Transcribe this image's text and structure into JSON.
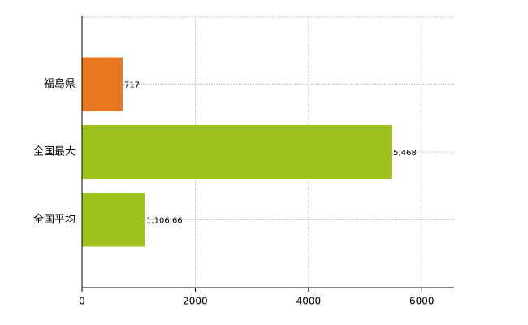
{
  "chart_data": {
    "type": "barh",
    "categories": [
      "福島県",
      "全国最大",
      "全国平均"
    ],
    "values": [
      717,
      5468,
      1106.66
    ],
    "value_labels": [
      "717",
      "5,468",
      "1,106.66"
    ],
    "colors": [
      "#e87722",
      "#9dc31c",
      "#9dc31c"
    ],
    "xlim": [
      0,
      6570
    ],
    "xticks": [
      0,
      2000,
      4000,
      6000
    ],
    "grid": true
  }
}
